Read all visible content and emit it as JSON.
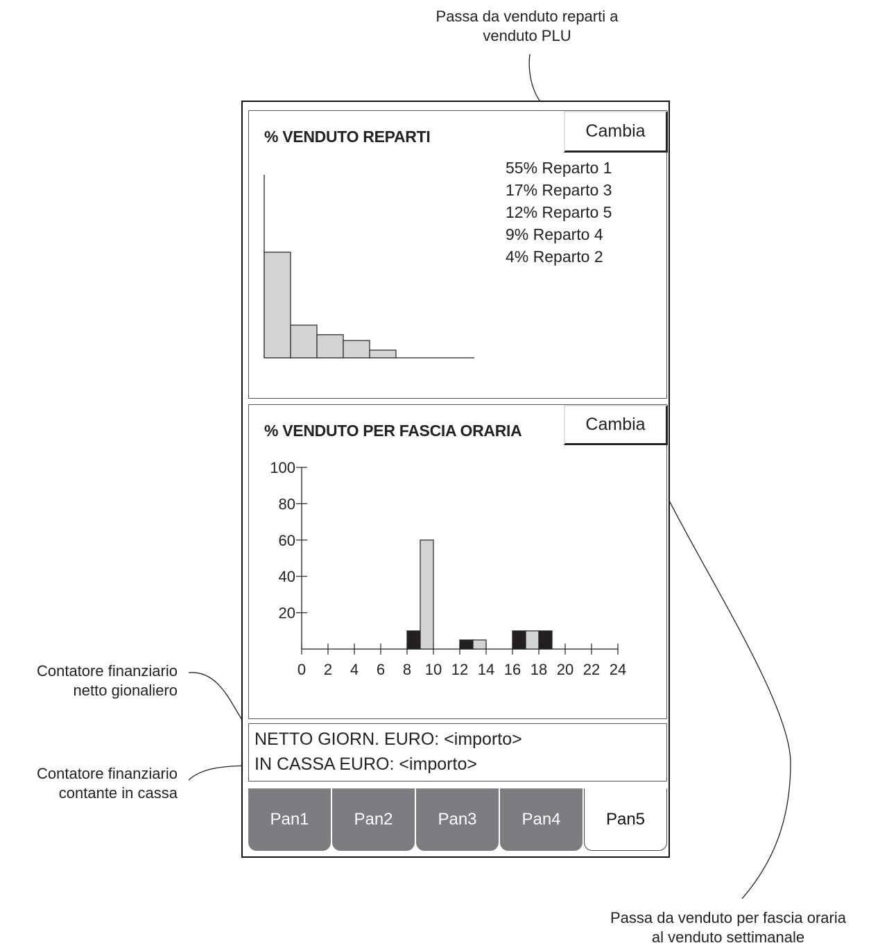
{
  "annotations": {
    "cambia_reparti": [
      "Passa da venduto reparti a",
      "venduto PLU"
    ],
    "cambia_fascia": [
      "Passa da venduto per fascia oraria",
      "al venduto settimanale"
    ],
    "netto": [
      "Contatore finanziario",
      "netto gionaliero"
    ],
    "cassa": [
      "Contatore finanziario",
      "contante in cassa"
    ]
  },
  "panel_reparti": {
    "title": "% VENDUTO REPARTI",
    "button_label": "Cambia",
    "legend": [
      "55% Reparto 1",
      "17% Reparto 3",
      "12% Reparto 5",
      "9% Reparto 4",
      "4% Reparto 2"
    ]
  },
  "panel_fascia": {
    "title": "% VENDUTO PER FASCIA ORARIA",
    "button_label": "Cambia"
  },
  "counters": {
    "netto": "NETTO GIORN. EURO:  <importo>",
    "cassa": "IN CASSA EURO:  <importo>"
  },
  "tabs": [
    {
      "label": "Pan1",
      "active": false
    },
    {
      "label": "Pan2",
      "active": false
    },
    {
      "label": "Pan3",
      "active": false
    },
    {
      "label": "Pan4",
      "active": false
    },
    {
      "label": "Pan5",
      "active": true
    }
  ],
  "colors": {
    "bar_light": "#d2d3d5",
    "bar_dark": "#231f20",
    "tab_inactive": "#7b7d80"
  },
  "chart_data": [
    {
      "type": "bar",
      "title": "% VENDUTO REPARTI",
      "categories": [
        "Reparto 1",
        "Reparto 3",
        "Reparto 5",
        "Reparto 4",
        "Reparto 2"
      ],
      "values": [
        55,
        17,
        12,
        9,
        4
      ],
      "ylim": [
        0,
        100
      ],
      "grid": false
    },
    {
      "type": "bar",
      "title": "% VENDUTO PER FASCIA ORARIA",
      "xlim": [
        0,
        24
      ],
      "ylim": [
        0,
        100
      ],
      "xticks": [
        "0",
        "2",
        "4",
        "6",
        "8",
        "10",
        "12",
        "14",
        "16",
        "18",
        "20",
        "22",
        "24"
      ],
      "yticks": [
        "20",
        "40",
        "60",
        "80",
        "100"
      ],
      "bars": [
        {
          "hour": 8,
          "value": 10,
          "shade": "dark"
        },
        {
          "hour": 9,
          "value": 60,
          "shade": "light"
        },
        {
          "hour": 12,
          "value": 5,
          "shade": "dark"
        },
        {
          "hour": 13,
          "value": 5,
          "shade": "light"
        },
        {
          "hour": 16,
          "value": 10,
          "shade": "dark"
        },
        {
          "hour": 17,
          "value": 10,
          "shade": "light"
        },
        {
          "hour": 18,
          "value": 10,
          "shade": "dark"
        }
      ],
      "grid": false
    }
  ]
}
